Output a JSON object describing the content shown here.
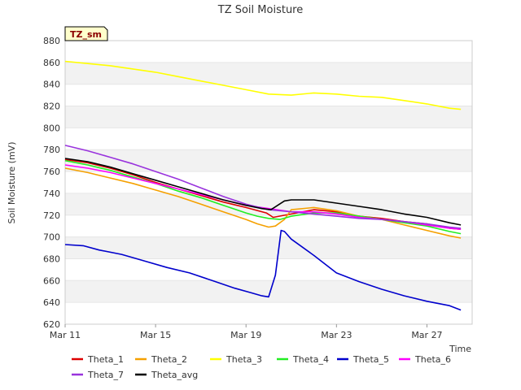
{
  "chart_data": {
    "type": "line",
    "title": "TZ Soil Moisture",
    "xlabel": "Time",
    "ylabel": "Soil Moisture (mV)",
    "badge": "TZ_sm",
    "ylim": [
      620,
      880
    ],
    "yticks": [
      620,
      640,
      660,
      680,
      700,
      720,
      740,
      760,
      780,
      800,
      820,
      840,
      860,
      880
    ],
    "xlim": [
      0,
      18
    ],
    "xticks": [
      {
        "value": 0,
        "label": "Mar 11"
      },
      {
        "value": 4,
        "label": "Mar 15"
      },
      {
        "value": 8,
        "label": "Mar 19"
      },
      {
        "value": 12,
        "label": "Mar 23"
      },
      {
        "value": 16,
        "label": "Mar 27"
      }
    ],
    "grid": "horizontal bands",
    "legend_position": "bottom",
    "series": [
      {
        "name": "Theta_1",
        "color": "#dd0000",
        "x": [
          0,
          1,
          2,
          3,
          4,
          5,
          6,
          7,
          8,
          8.9,
          9.2,
          10,
          11,
          12,
          13,
          14,
          15,
          16,
          17,
          17.5
        ],
        "y": [
          771,
          768,
          763,
          757,
          750,
          744,
          738,
          732,
          727,
          722,
          718,
          721,
          725,
          723,
          719,
          717,
          714,
          712,
          708,
          707
        ]
      },
      {
        "name": "Theta_2",
        "color": "#f5a000",
        "x": [
          0,
          1,
          2,
          3,
          4,
          5,
          6,
          7,
          8,
          8.5,
          9,
          9.3,
          9.7,
          10,
          11,
          12,
          13,
          14,
          15,
          16,
          17,
          17.5
        ],
        "y": [
          763,
          759,
          754,
          749,
          743,
          737,
          730,
          723,
          716,
          712,
          709,
          710,
          716,
          725,
          727,
          724,
          719,
          716,
          711,
          706,
          701,
          699
        ]
      },
      {
        "name": "Theta_3",
        "color": "#ffff00",
        "x": [
          0,
          1,
          2,
          3,
          4,
          5,
          6,
          7,
          8,
          9,
          10,
          11,
          12,
          13,
          14,
          15,
          16,
          17,
          17.5
        ],
        "y": [
          861,
          859,
          857,
          854,
          851,
          847,
          843,
          839,
          835,
          831,
          830,
          832,
          831,
          829,
          828,
          825,
          822,
          818,
          817
        ]
      },
      {
        "name": "Theta_4",
        "color": "#22ee22",
        "x": [
          0,
          1,
          2,
          3,
          4,
          5,
          6,
          7,
          8,
          8.5,
          9,
          9.5,
          10,
          11,
          12,
          13,
          14,
          15,
          16,
          17,
          17.5
        ],
        "y": [
          770,
          766,
          761,
          755,
          749,
          742,
          736,
          729,
          722,
          719,
          717,
          716,
          719,
          722,
          722,
          719,
          716,
          713,
          710,
          705,
          703
        ]
      },
      {
        "name": "Theta_5",
        "color": "#0000cc",
        "x": [
          0,
          0.8,
          1.5,
          2.5,
          3.5,
          4.5,
          5.5,
          6.5,
          7.5,
          8.2,
          8.7,
          9.0,
          9.3,
          9.55,
          9.7,
          10,
          11,
          12,
          13,
          14,
          15,
          16,
          17,
          17.5
        ],
        "y": [
          693,
          692,
          688,
          684,
          678,
          672,
          667,
          660,
          653,
          649,
          646,
          645,
          665,
          706,
          705,
          698,
          683,
          667,
          659,
          652,
          646,
          641,
          637,
          633
        ]
      },
      {
        "name": "Theta_6",
        "color": "#ff00ff",
        "x": [
          0,
          1,
          2,
          3,
          4,
          5,
          6,
          7,
          8,
          9,
          10,
          11,
          12,
          13,
          14,
          15,
          16,
          17,
          17.5
        ],
        "y": [
          766,
          763,
          759,
          754,
          749,
          744,
          739,
          734,
          729,
          726,
          723,
          723,
          721,
          718,
          716,
          714,
          711,
          708,
          707
        ]
      },
      {
        "name": "Theta_7",
        "color": "#9933dd",
        "x": [
          0,
          1,
          2,
          3,
          4,
          5,
          6,
          7,
          8,
          9,
          10,
          11,
          12,
          13,
          14,
          15,
          16,
          17,
          17.5
        ],
        "y": [
          784,
          779,
          773,
          767,
          760,
          753,
          745,
          737,
          730,
          725,
          723,
          721,
          719,
          717,
          716,
          714,
          712,
          709,
          708
        ]
      },
      {
        "name": "Theta_avg",
        "color": "#000000",
        "x": [
          0,
          1,
          2,
          3,
          4,
          5,
          6,
          7,
          8,
          8.7,
          9.1,
          9.4,
          9.7,
          10,
          11,
          12,
          13,
          14,
          15,
          16,
          17,
          17.5
        ],
        "y": [
          772,
          769,
          764,
          758,
          752,
          746,
          740,
          734,
          729,
          726,
          725,
          729,
          733,
          734,
          734,
          731,
          728,
          725,
          721,
          718,
          713,
          711
        ]
      }
    ]
  }
}
